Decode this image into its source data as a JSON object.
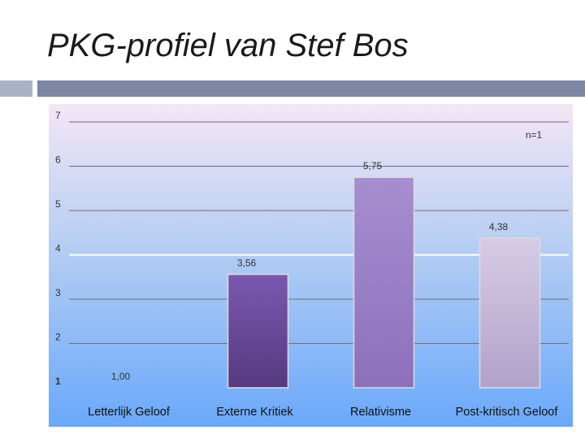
{
  "slide": {
    "title": "PKG-profiel van Stef Bos"
  },
  "chart_data": {
    "type": "bar",
    "title": "",
    "xlabel": "",
    "ylabel": "",
    "annotation": "n=1",
    "categories": [
      "Letterlijk Geloof",
      "Externe Kritiek",
      "Relativisme",
      "Post-kritisch Geloof"
    ],
    "values": [
      1.0,
      3.56,
      5.75,
      4.38
    ],
    "value_labels": [
      "1,00",
      "3,56",
      "5,75",
      "4,38"
    ],
    "y_ticks": [
      "1",
      "2",
      "3",
      "4",
      "5",
      "6",
      "7"
    ],
    "ylim": [
      1,
      7
    ],
    "reference_line": 4,
    "grid": true,
    "colors": {
      "background_top": "#f4e6f6",
      "background_bottom": "#6aa8fb",
      "bar_externe_kritiek": "#6a4a9a",
      "bar_relativisme": "#9a80c4",
      "bar_post_kritisch": "#c4b8d8",
      "gridline": "#6e6e6e",
      "reference_line": "#ffffff"
    }
  }
}
